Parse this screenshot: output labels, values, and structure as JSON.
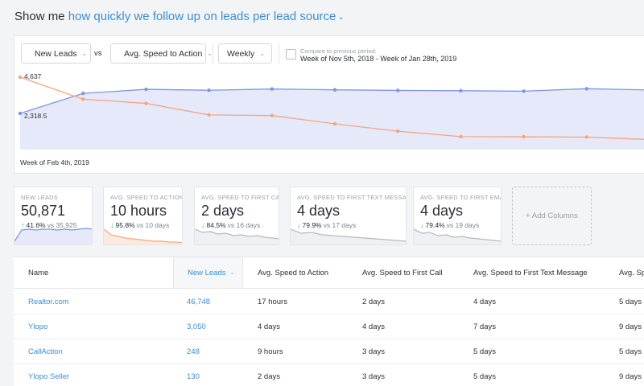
{
  "header": {
    "prefix": "Show me",
    "metric_link": "how quickly we follow up on leads per lead source"
  },
  "controls": {
    "primary_metric": "New Leads",
    "vs_label": "vs",
    "secondary_metric": "Avg. Speed to Action",
    "interval": "Weekly",
    "compare_label": "Compare to previous period:",
    "compare_range": "Week of Nov 5th, 2018 - Week of Jan 28th, 2019",
    "compare_checked": false
  },
  "colors": {
    "new_leads": "#7e96e3",
    "new_leads_fill": "#e6e9fa",
    "speed": "#f4a67c",
    "link": "#3a8fd8",
    "up": "#35b36a",
    "down": "#35b36a",
    "spark_gray": "#b5bac2"
  },
  "chart_data": {
    "type": "line",
    "x_visible_label": "Week of Feb 4th, 2019",
    "y_labels": [
      "4,637",
      "2,318.5"
    ],
    "series": [
      {
        "name": "New Leads",
        "values": [
          2318.5,
          3600,
          3860,
          3800,
          3880,
          3830,
          3790,
          3770,
          3740,
          3900,
          3820,
          3720
        ]
      },
      {
        "name": "Avg. Speed to Action",
        "values": [
          4637,
          3230,
          2960,
          2220,
          2180,
          1650,
          1180,
          830,
          820,
          800,
          640,
          600
        ]
      }
    ],
    "ylim": [
      0,
      4637
    ]
  },
  "stats": [
    {
      "title": "NEW LEADS",
      "value": "50,871",
      "pct": "41.6%",
      "vs": "vs 35,925",
      "direction": "up",
      "spark": [
        4,
        18,
        19,
        18,
        19,
        19,
        18,
        19,
        18,
        19,
        20,
        19
      ],
      "spark_color": "#7e96e3",
      "spark_fill": "#e6e9fa"
    },
    {
      "title": "AVG. SPEED TO ACTION",
      "value": "10 hours",
      "pct": "95.8%",
      "vs": "vs 10 days",
      "direction": "down",
      "spark": [
        19,
        12,
        10,
        8,
        7,
        6,
        5,
        4,
        4,
        3,
        3,
        2
      ],
      "spark_color": "#f4a67c",
      "spark_fill": "#fde9dd"
    },
    {
      "title": "AVG. SPEED TO FIRST CALL",
      "value": "2 days",
      "pct": "84.5%",
      "vs": "vs 16 days",
      "direction": "down",
      "spark": [
        19,
        15,
        16,
        13,
        14,
        11,
        12,
        10,
        11,
        9,
        8,
        7
      ],
      "spark_color": "#b5bac2",
      "spark_fill": "#eef0f2"
    },
    {
      "title": "AVG. SPEED TO FIRST TEXT MESSAGE",
      "value": "4 days",
      "pct": "79.9%",
      "vs": "vs 17 days",
      "direction": "down",
      "spark": [
        19,
        14,
        15,
        12,
        11,
        10,
        9,
        8,
        7,
        6,
        5,
        4
      ],
      "spark_color": "#b5bac2",
      "spark_fill": "#eef0f2"
    },
    {
      "title": "AVG. SPEED TO FIRST EMAIL",
      "value": "4 days",
      "pct": "79.4%",
      "vs": "vs 19 days",
      "direction": "down",
      "spark": [
        19,
        14,
        15,
        11,
        12,
        9,
        10,
        8,
        7,
        6,
        5,
        4
      ],
      "spark_color": "#b5bac2",
      "spark_fill": "#eef0f2"
    }
  ],
  "add_columns_label": "+ Add Columns",
  "table": {
    "headers": [
      "Name",
      "New Leads",
      "Avg. Speed to Action",
      "Avg. Speed to First Call",
      "Avg. Speed to First Text Message",
      "Avg. Sp"
    ],
    "rows": [
      [
        "Realtor.com",
        "46,748",
        "17 hours",
        "2 days",
        "4 days",
        "5 days"
      ],
      [
        "Ylopo",
        "3,050",
        "4 days",
        "4 days",
        "7 days",
        "9 days"
      ],
      [
        "CallAction",
        "248",
        "9 hours",
        "3 days",
        "5 days",
        "5 days"
      ],
      [
        "Ylopo Seller",
        "130",
        "2 days",
        "3 days",
        "5 days",
        "9 days"
      ]
    ]
  }
}
